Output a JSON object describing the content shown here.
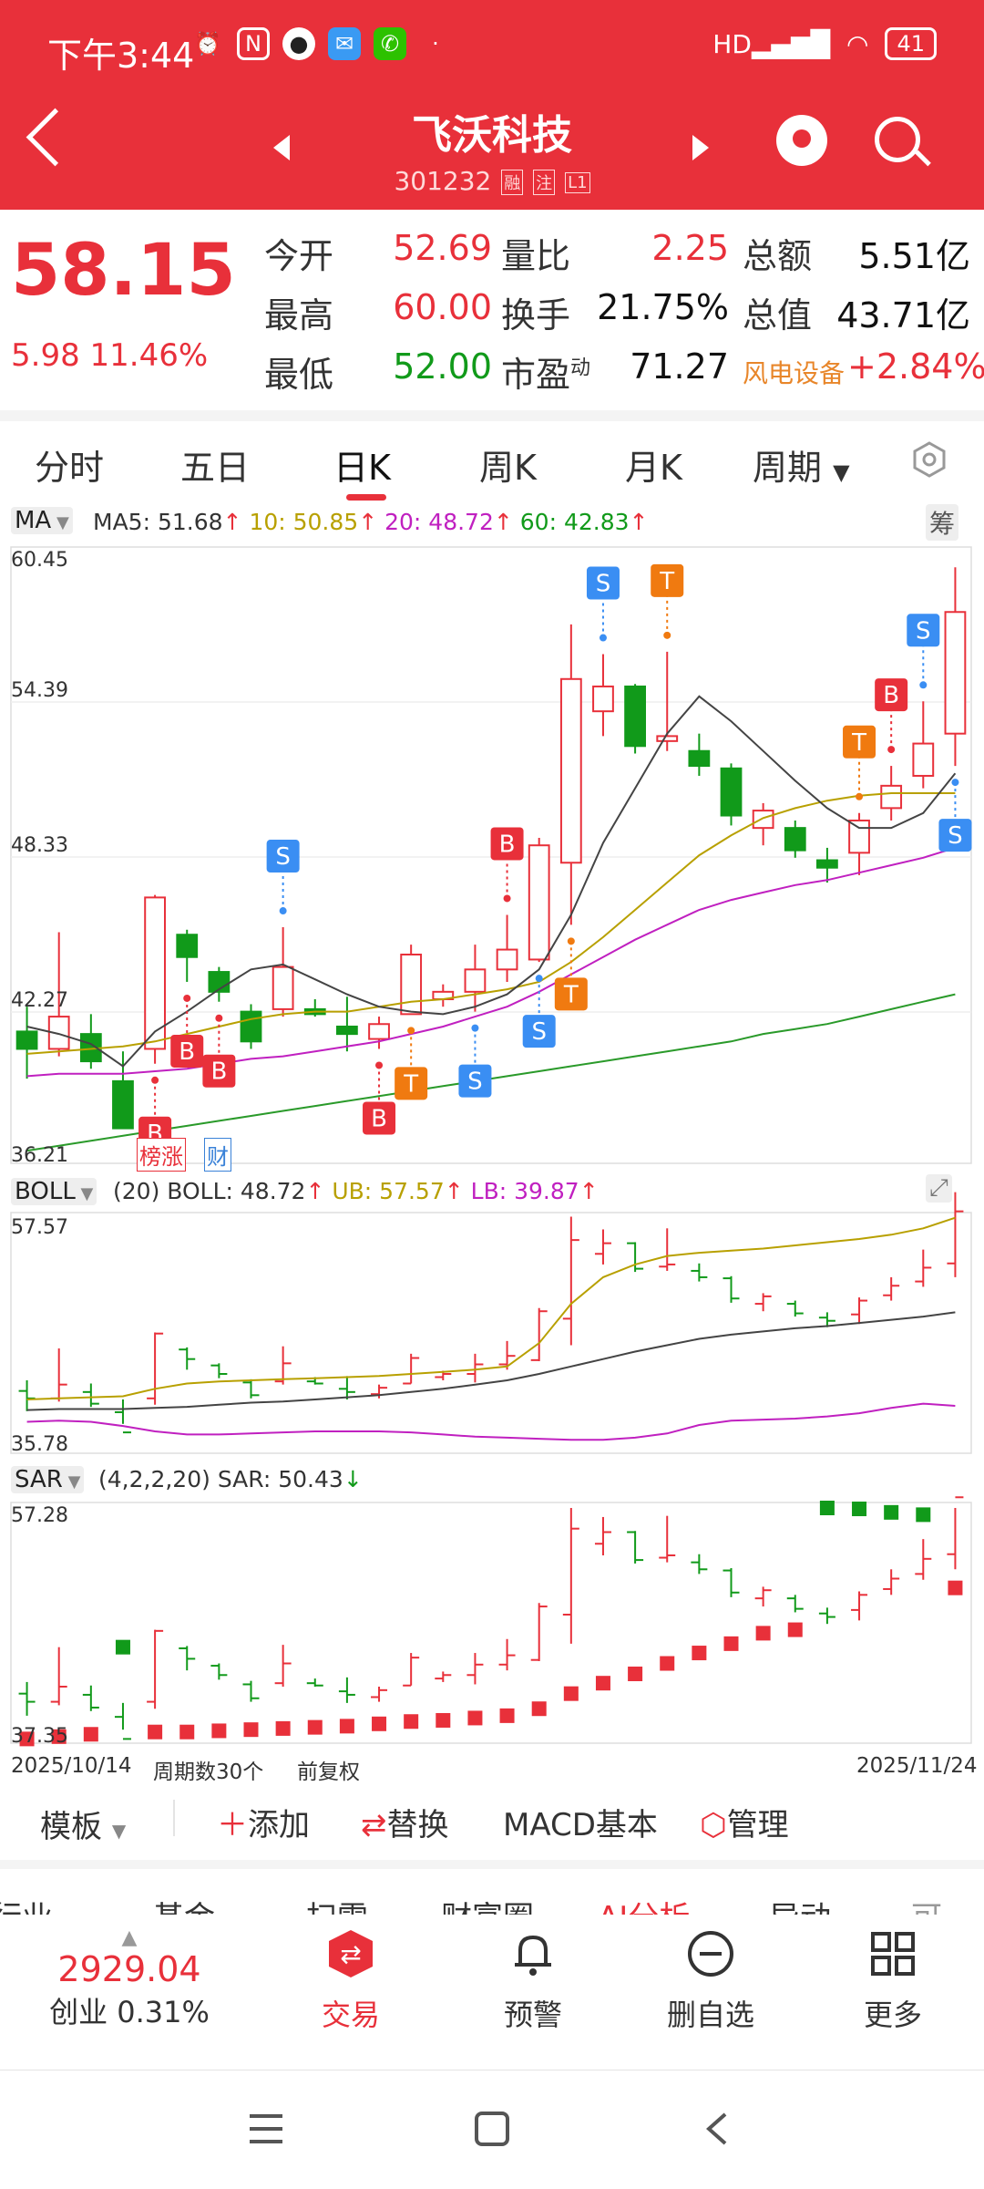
{
  "status_bar": {
    "time": "下午3:44",
    "battery": "41"
  },
  "header": {
    "title": "飞沃科技",
    "code": "301232",
    "tags": [
      "融",
      "注",
      "L1"
    ]
  },
  "quote": {
    "price": "58.15",
    "change": "5.98",
    "change_pct": "11.46%",
    "rows": [
      [
        {
          "label": "今开",
          "value": "52.69"
        },
        {
          "label": "量比",
          "value": "2.25"
        },
        {
          "label": "总额",
          "value": "5.51亿"
        }
      ],
      [
        {
          "label": "最高",
          "value": "60.00"
        },
        {
          "label": "换手",
          "value": "21.75%"
        },
        {
          "label": "总值",
          "value": "43.71亿"
        }
      ],
      [
        {
          "label": "最低",
          "value": "52.00"
        },
        {
          "label": "市盈",
          "sup": "动",
          "value": "71.27"
        },
        {
          "label": "风电设备",
          "value": "+2.84%"
        }
      ]
    ]
  },
  "tabs": [
    "分时",
    "五日",
    "日K",
    "周K",
    "月K",
    "周期"
  ],
  "main_chart": {
    "ma_button": "MA",
    "ma5": "MA5: 51.68",
    "ma10": "10: 50.85",
    "ma20": "20: 48.72",
    "ma60": "60: 42.83",
    "chou_button": "筹",
    "y_labels": [
      "60.45",
      "54.39",
      "48.33",
      "42.27",
      "36.21"
    ],
    "bottom_tags": [
      "榜涨",
      "财"
    ]
  },
  "boll_chart": {
    "button": "BOLL",
    "params": "(20) BOLL: 48.72",
    "ub": "UB: 57.57",
    "lb": "LB: 39.87",
    "y_top": "57.57",
    "y_bottom": "35.78"
  },
  "sar_chart": {
    "button": "SAR",
    "params": "(4,2,2,20) SAR: 50.43",
    "y_top": "57.28",
    "y_bottom": "37.35"
  },
  "date_bar": {
    "start": "2025/10/14",
    "mid": "周期数30个",
    "adj": "前复权",
    "end": "2025/11/24"
  },
  "toolbar": {
    "template": "模板",
    "add": "添加",
    "replace": "替换",
    "macd": "MACD基本",
    "manage": "管理"
  },
  "news_tabs": [
    "行业",
    "基金",
    "扫雷",
    "财富圈",
    "AI分析",
    "异动",
    "可"
  ],
  "bottom_nav": {
    "index_value": "2929.04",
    "index_name": "创业 0.31%",
    "items": [
      "交易",
      "预警",
      "删自选",
      "更多"
    ]
  },
  "chart_data": {
    "type": "candlestick",
    "series": [
      {
        "o": 41.3,
        "h": 42.3,
        "l": 39.4,
        "c": 40.6
      },
      {
        "o": 40.6,
        "h": 45.3,
        "l": 40.3,
        "c": 41.9
      },
      {
        "o": 41.2,
        "h": 42.0,
        "l": 39.8,
        "c": 40.1
      },
      {
        "o": 39.3,
        "h": 40.5,
        "l": 38.2,
        "c": 37.4
      },
      {
        "o": 40.6,
        "h": 46.8,
        "l": 40.0,
        "c": 46.7
      },
      {
        "o": 45.2,
        "h": 45.4,
        "l": 43.3,
        "c": 44.3
      },
      {
        "o": 43.7,
        "h": 43.9,
        "l": 42.5,
        "c": 42.9
      },
      {
        "o": 42.1,
        "h": 42.4,
        "l": 40.6,
        "c": 40.9
      },
      {
        "o": 42.2,
        "h": 45.5,
        "l": 41.9,
        "c": 43.9
      },
      {
        "o": 42.2,
        "h": 42.6,
        "l": 41.9,
        "c": 42.0
      },
      {
        "o": 41.5,
        "h": 42.7,
        "l": 40.5,
        "c": 41.2
      },
      {
        "o": 41.0,
        "h": 41.9,
        "l": 40.6,
        "c": 41.6
      },
      {
        "o": 42.0,
        "h": 44.8,
        "l": 42.0,
        "c": 44.4
      },
      {
        "o": 42.6,
        "h": 43.2,
        "l": 42.3,
        "c": 42.9
      },
      {
        "o": 42.9,
        "h": 44.8,
        "l": 42.1,
        "c": 43.8
      },
      {
        "o": 43.8,
        "h": 46.0,
        "l": 43.3,
        "c": 44.6
      },
      {
        "o": 44.2,
        "h": 49.1,
        "l": 44.1,
        "c": 48.8
      },
      {
        "o": 48.1,
        "h": 57.7,
        "l": 45.6,
        "c": 55.5
      },
      {
        "o": 54.2,
        "h": 56.5,
        "l": 53.2,
        "c": 55.2
      },
      {
        "o": 55.2,
        "h": 55.3,
        "l": 52.5,
        "c": 52.8
      },
      {
        "o": 53.0,
        "h": 56.6,
        "l": 52.6,
        "c": 53.2
      },
      {
        "o": 52.6,
        "h": 53.3,
        "l": 51.6,
        "c": 52.0
      },
      {
        "o": 51.9,
        "h": 52.1,
        "l": 49.6,
        "c": 50.0
      },
      {
        "o": 49.5,
        "h": 50.5,
        "l": 48.8,
        "c": 50.2
      },
      {
        "o": 49.5,
        "h": 49.8,
        "l": 48.3,
        "c": 48.6
      },
      {
        "o": 48.2,
        "h": 48.7,
        "l": 47.3,
        "c": 47.9
      },
      {
        "o": 48.5,
        "h": 50.1,
        "l": 47.6,
        "c": 49.8
      },
      {
        "o": 50.3,
        "h": 52.0,
        "l": 49.8,
        "c": 51.2
      },
      {
        "o": 51.6,
        "h": 54.6,
        "l": 51.1,
        "c": 52.9
      },
      {
        "o": 53.3,
        "h": 60.0,
        "l": 52.0,
        "c": 58.2
      }
    ],
    "ma5": [
      41.5,
      41.2,
      40.8,
      39.9,
      41.3,
      42.1,
      43.0,
      43.8,
      44.0,
      43.4,
      42.8,
      42.3,
      42.1,
      42.0,
      42.3,
      42.8,
      43.8,
      46.0,
      48.9,
      51.1,
      53.3,
      54.8,
      53.8,
      52.6,
      51.4,
      50.3,
      49.5,
      49.5,
      50.1,
      51.7
    ],
    "ma10": [
      40.4,
      40.5,
      40.6,
      40.7,
      40.9,
      41.2,
      41.5,
      41.8,
      42.0,
      42.1,
      42.1,
      42.3,
      42.5,
      42.6,
      42.8,
      43.0,
      43.3,
      44.1,
      45.1,
      46.2,
      47.3,
      48.4,
      49.2,
      49.9,
      50.3,
      50.6,
      50.8,
      50.9,
      50.9,
      50.9
    ],
    "ma20": [
      39.5,
      39.6,
      39.6,
      39.6,
      39.7,
      39.8,
      40.0,
      40.2,
      40.3,
      40.5,
      40.7,
      40.9,
      41.2,
      41.5,
      41.9,
      42.3,
      42.9,
      43.6,
      44.3,
      45.0,
      45.6,
      46.2,
      46.6,
      46.9,
      47.2,
      47.4,
      47.7,
      48.0,
      48.3,
      48.7
    ],
    "ma60": [
      36.5,
      36.7,
      36.9,
      37.1,
      37.3,
      37.5,
      37.7,
      37.9,
      38.1,
      38.3,
      38.5,
      38.7,
      38.9,
      39.1,
      39.3,
      39.5,
      39.7,
      39.9,
      40.1,
      40.3,
      40.5,
      40.7,
      40.9,
      41.2,
      41.4,
      41.6,
      41.9,
      42.2,
      42.5,
      42.8
    ],
    "markers": [
      {
        "i": 4,
        "t": "B",
        "pos": "below"
      },
      {
        "i": 5,
        "t": "B",
        "pos": "below"
      },
      {
        "i": 6,
        "t": "B",
        "pos": "below"
      },
      {
        "i": 8,
        "t": "S",
        "pos": "above"
      },
      {
        "i": 11,
        "t": "B",
        "pos": "below"
      },
      {
        "i": 12,
        "t": "T",
        "pos": "below"
      },
      {
        "i": 14,
        "t": "S",
        "pos": "below"
      },
      {
        "i": 15,
        "t": "B",
        "pos": "above"
      },
      {
        "i": 16,
        "t": "S",
        "pos": "below"
      },
      {
        "i": 17,
        "t": "T",
        "pos": "below"
      },
      {
        "i": 18,
        "t": "S",
        "pos": "above"
      },
      {
        "i": 20,
        "t": "T",
        "pos": "above"
      },
      {
        "i": 26,
        "t": "T",
        "pos": "above"
      },
      {
        "i": 27,
        "t": "B",
        "pos": "above"
      },
      {
        "i": 28,
        "t": "S",
        "pos": "above"
      },
      {
        "i": 29,
        "t": "S",
        "pos": "below"
      }
    ],
    "boll_ub": [
      40.5,
      40.6,
      40.7,
      40.8,
      41.5,
      42.0,
      42.2,
      42.3,
      42.4,
      42.5,
      42.6,
      42.7,
      42.9,
      43.1,
      43.3,
      43.6,
      45.8,
      49.5,
      52.0,
      53.2,
      54.0,
      54.3,
      54.5,
      54.7,
      55.0,
      55.3,
      55.6,
      56.0,
      56.6,
      57.6
    ],
    "boll_mid": [
      39.5,
      39.6,
      39.6,
      39.6,
      39.7,
      39.8,
      40.0,
      40.2,
      40.3,
      40.5,
      40.7,
      40.9,
      41.2,
      41.5,
      41.9,
      42.3,
      42.9,
      43.6,
      44.3,
      45.0,
      45.6,
      46.2,
      46.6,
      46.9,
      47.2,
      47.4,
      47.7,
      48.0,
      48.3,
      48.7
    ],
    "boll_lb": [
      38.4,
      38.5,
      38.4,
      38.0,
      37.5,
      37.2,
      37.2,
      37.3,
      37.4,
      37.5,
      37.5,
      37.5,
      37.4,
      37.2,
      37.0,
      36.9,
      36.8,
      36.7,
      36.7,
      36.9,
      37.3,
      38.1,
      38.5,
      38.6,
      38.7,
      38.9,
      39.2,
      39.7,
      40.1,
      39.9
    ],
    "sar": [
      37.4,
      37.6,
      37.8,
      null,
      38.0,
      38.0,
      38.1,
      38.2,
      38.3,
      38.4,
      38.5,
      38.7,
      38.9,
      39.0,
      39.2,
      39.4,
      40.0,
      41.3,
      42.2,
      43.0,
      43.9,
      44.8,
      45.6,
      46.5,
      46.8,
      null,
      null,
      null,
      null,
      50.4
    ],
    "sar_bear": [
      {
        "i": 3,
        "v": 45.3
      },
      {
        "i": 25,
        "v": 57.5
      },
      {
        "i": 26,
        "v": 57.2
      },
      {
        "i": 27,
        "v": 56.9
      },
      {
        "i": 28,
        "v": 56.7
      }
    ]
  }
}
